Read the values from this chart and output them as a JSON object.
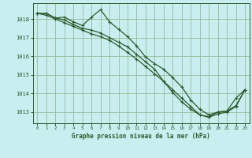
{
  "title": "Graphe pression niveau de la mer (hPa)",
  "bg_color": "#c8eef0",
  "grid_color": "#99bb99",
  "line_color": "#2d5a2d",
  "xlim": [
    -0.5,
    23.5
  ],
  "ylim": [
    1012.4,
    1018.85
  ],
  "yticks": [
    1013,
    1014,
    1015,
    1016,
    1017,
    1018
  ],
  "xticks": [
    0,
    1,
    2,
    3,
    4,
    5,
    6,
    7,
    8,
    9,
    10,
    11,
    12,
    13,
    14,
    15,
    16,
    17,
    18,
    19,
    20,
    21,
    22,
    23
  ],
  "series1_x": [
    0,
    1,
    2,
    3,
    4,
    5,
    6,
    7,
    8,
    9,
    10,
    11,
    12,
    13,
    14,
    15,
    16,
    17,
    18,
    19,
    20,
    21,
    22,
    23
  ],
  "series1_y": [
    1018.3,
    1018.3,
    1018.05,
    1018.1,
    1017.85,
    1017.65,
    1018.1,
    1018.5,
    1017.85,
    1017.45,
    1017.05,
    1016.55,
    1015.95,
    1015.6,
    1015.3,
    1014.85,
    1014.35,
    1013.65,
    1013.15,
    1012.85,
    1013.0,
    1013.05,
    1013.75,
    1014.2
  ],
  "series2_x": [
    0,
    1,
    2,
    3,
    4,
    5,
    6,
    7,
    8,
    9,
    10,
    11,
    12,
    13,
    14,
    15,
    16,
    17,
    18,
    19,
    20,
    21,
    22,
    23
  ],
  "series2_y": [
    1018.3,
    1018.3,
    1018.05,
    1017.95,
    1017.7,
    1017.5,
    1017.4,
    1017.25,
    1017.0,
    1016.75,
    1016.5,
    1016.1,
    1015.7,
    1015.3,
    1014.65,
    1014.05,
    1013.55,
    1013.15,
    1012.85,
    1012.75,
    1013.0,
    1013.05,
    1013.35,
    1014.2
  ],
  "series3_x": [
    0,
    1,
    2,
    3,
    4,
    5,
    6,
    7,
    8,
    9,
    10,
    11,
    12,
    13,
    14,
    15,
    16,
    17,
    18,
    19,
    20,
    21,
    22,
    23
  ],
  "series3_y": [
    1018.3,
    1018.2,
    1018.0,
    1017.8,
    1017.6,
    1017.4,
    1017.2,
    1017.05,
    1016.85,
    1016.55,
    1016.2,
    1015.85,
    1015.45,
    1015.05,
    1014.65,
    1014.2,
    1013.75,
    1013.3,
    1012.85,
    1012.72,
    1012.9,
    1013.0,
    1013.3,
    1014.2
  ]
}
